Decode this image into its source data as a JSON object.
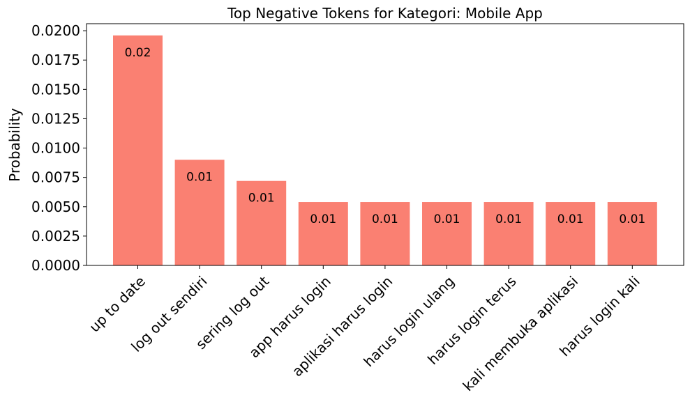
{
  "chart_data": {
    "type": "bar",
    "title": "Top Negative Tokens for Kategori: Mobile App",
    "xlabel": "",
    "ylabel": "Probability",
    "categories": [
      "up to date",
      "log out sendiri",
      "sering log out",
      "app harus login",
      "aplikasi harus login",
      "harus login ulang",
      "harus login terus",
      "kali membuka aplikasi",
      "harus login kali"
    ],
    "values": [
      0.0196,
      0.009,
      0.0072,
      0.0054,
      0.0054,
      0.0054,
      0.0054,
      0.0054,
      0.0054
    ],
    "data_labels": [
      "0.02",
      "0.01",
      "0.01",
      "0.01",
      "0.01",
      "0.01",
      "0.01",
      "0.01",
      "0.01"
    ],
    "ylim": [
      0,
      0.0206
    ],
    "yticks": [
      0.0,
      0.0025,
      0.005,
      0.0075,
      0.01,
      0.0125,
      0.015,
      0.0175,
      0.02
    ],
    "ytick_labels": [
      "0.0000",
      "0.0025",
      "0.0050",
      "0.0075",
      "0.0100",
      "0.0125",
      "0.0150",
      "0.0175",
      "0.0200"
    ],
    "bar_color": "#fa8072",
    "grid": false,
    "legend": "none"
  }
}
